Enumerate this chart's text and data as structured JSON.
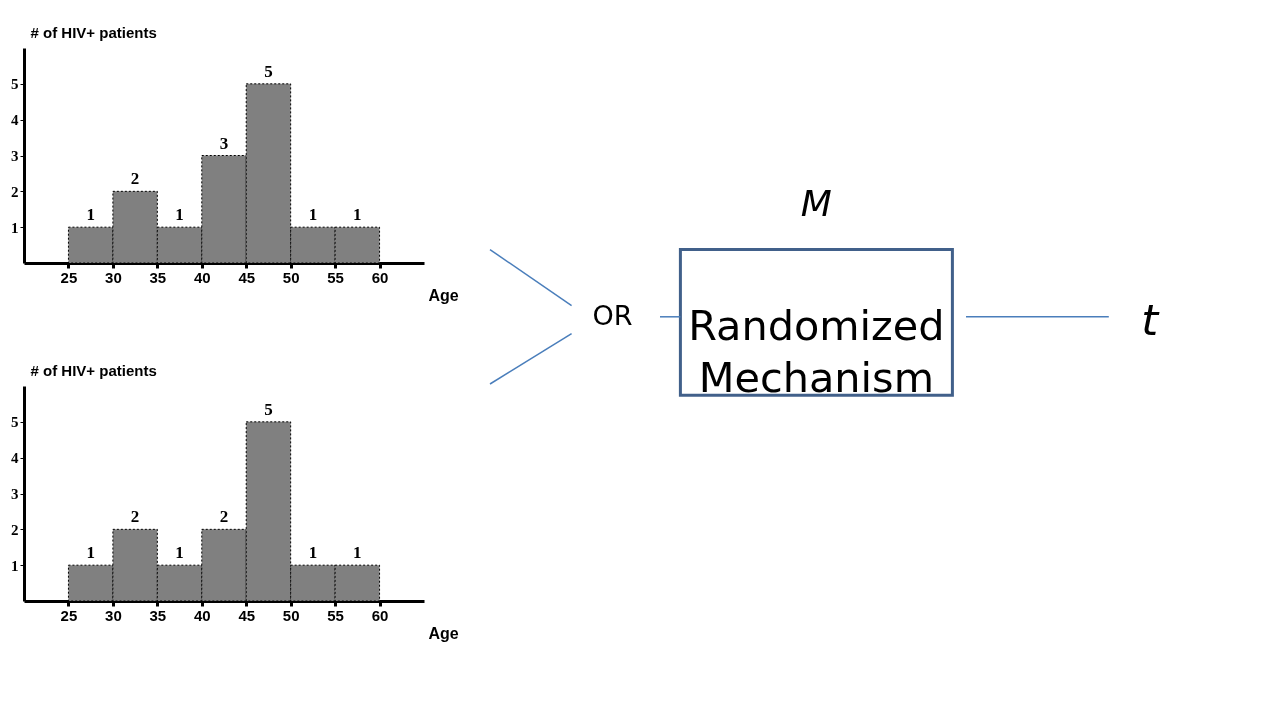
{
  "chart_data": [
    {
      "type": "histogram",
      "xlabel": "Age",
      "ylabel": "# of HIV+ patients",
      "bins": [
        25,
        30,
        35,
        40,
        45,
        50,
        55,
        60
      ],
      "values": [
        1,
        2,
        1,
        3,
        5,
        1,
        1
      ],
      "color": "#808080",
      "xlim": [
        20,
        65
      ],
      "ylim": [
        0,
        6
      ],
      "xticks": [
        25,
        30,
        35,
        40,
        45,
        50,
        55,
        60
      ],
      "yticks": [
        1,
        2,
        3,
        4,
        5
      ],
      "data_labels": true,
      "grid": false
    },
    {
      "type": "histogram",
      "xlabel": "Age",
      "ylabel": "# of HIV+ patients",
      "bins": [
        25,
        30,
        35,
        40,
        45,
        50,
        55,
        60
      ],
      "values": [
        1,
        2,
        1,
        2,
        5,
        1,
        1
      ],
      "color": "#808080",
      "xlim": [
        20,
        65
      ],
      "ylim": [
        0,
        6
      ],
      "xticks": [
        25,
        30,
        35,
        40,
        45,
        50,
        55,
        60
      ],
      "yticks": [
        1,
        2,
        3,
        4,
        5
      ],
      "data_labels": true,
      "grid": false
    },
    {
      "type": "other",
      "annotations": [
        "OR",
        "M",
        "Randomized Mechanism",
        "t"
      ]
    }
  ]
}
